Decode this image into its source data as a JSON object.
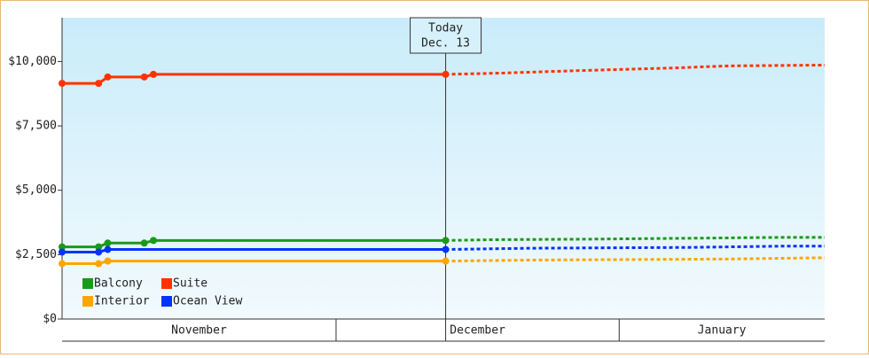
{
  "chart_data": {
    "type": "line",
    "ylim": [
      0,
      11700
    ],
    "yticks": [
      {
        "value": 0,
        "label": "$0"
      },
      {
        "value": 2500,
        "label": "$2,500"
      },
      {
        "value": 5000,
        "label": "$5,000"
      },
      {
        "value": 7500,
        "label": "$7,500"
      },
      {
        "value": 10000,
        "label": "$10,000"
      }
    ],
    "xlim": [
      0,
      83.5
    ],
    "xbands": [
      {
        "label": "November",
        "start": 0,
        "end": 30
      },
      {
        "label": "December",
        "start": 30,
        "end": 61
      },
      {
        "label": "January",
        "start": 61,
        "end": 83.5
      }
    ],
    "annotation": {
      "x": 42,
      "lines": [
        "Today",
        "Dec. 13"
      ]
    },
    "legend": "lower left",
    "series": [
      {
        "name": "Balcony",
        "color": "#1a9a1a",
        "x": [
          0,
          4,
          5,
          9,
          10,
          42
        ],
        "values": [
          2800,
          2800,
          2950,
          2950,
          3050,
          3050
        ],
        "forecast": {
          "x": [
            42,
            47,
            57,
            79,
            83.5
          ],
          "values": [
            3050,
            3080,
            3100,
            3170,
            3170
          ]
        }
      },
      {
        "name": "Suite",
        "color": "#ff3300",
        "x": [
          0,
          4,
          5,
          9,
          10,
          42
        ],
        "values": [
          9150,
          9150,
          9400,
          9400,
          9500,
          9500
        ],
        "forecast": {
          "x": [
            42,
            48,
            57,
            67,
            73,
            83.5
          ],
          "values": [
            9500,
            9550,
            9650,
            9750,
            9830,
            9860
          ]
        }
      },
      {
        "name": "Interior",
        "color": "#ffa500",
        "x": [
          0,
          4,
          5,
          42
        ],
        "values": [
          2150,
          2150,
          2250,
          2250
        ],
        "forecast": {
          "x": [
            42,
            51.5,
            73,
            83.5
          ],
          "values": [
            2250,
            2290,
            2330,
            2380
          ]
        }
      },
      {
        "name": "Ocean View",
        "color": "#0033ff",
        "x": [
          0,
          4,
          5,
          42
        ],
        "values": [
          2600,
          2600,
          2700,
          2700
        ],
        "forecast": {
          "x": [
            42,
            51.5,
            68.5,
            79,
            83.5
          ],
          "values": [
            2700,
            2750,
            2780,
            2830,
            2830
          ]
        }
      }
    ]
  }
}
